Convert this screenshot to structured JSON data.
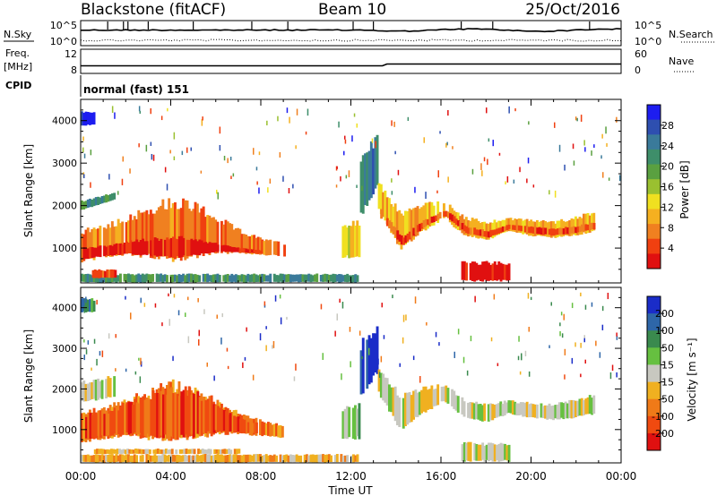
{
  "header": {
    "station": "Blackstone (fitACF)",
    "beam": "Beam 10",
    "date": "25/Oct/2016"
  },
  "summary_panels": {
    "nsky_label": "N.Sky",
    "nsearch_label": "N.Search",
    "count_axis_ticks": [
      "10^5",
      "10^0"
    ],
    "freq_label_line1": "Freq.",
    "freq_label_line2": "[MHz]",
    "freq_ticks": [
      "12",
      "8"
    ],
    "nave_label": "Nave",
    "nave_ticks": [
      "60",
      "0"
    ],
    "cpid_label": "CPID",
    "cpid_text": "normal (fast) 151"
  },
  "chart_data": [
    {
      "type": "heatmap",
      "name": "power-panel",
      "ylabel": "Slant Range [km]",
      "ylim": [
        180,
        4500
      ],
      "yticks": [
        1000,
        2000,
        3000,
        4000
      ],
      "xlim": [
        0,
        24
      ],
      "colorbar": {
        "label": "Power [dB]",
        "ticks": [
          "28",
          "24",
          "20",
          "16",
          "12",
          "8",
          "4"
        ],
        "colors": [
          "#1d1df0",
          "#2e4fb0",
          "#3a7a9a",
          "#3e8e6a",
          "#5aa040",
          "#9ac030",
          "#f0e020",
          "#f5b020",
          "#f08020",
          "#f04010",
          "#e01010"
        ]
      },
      "bands": [
        {
          "t": [
            0,
            1.5
          ],
          "lo": [
            1900,
            2150
          ],
          "hi": [
            2100,
            2300
          ],
          "c": 3
        },
        {
          "t": [
            0,
            9
          ],
          "lo": [
            700,
            800,
            850,
            800,
            750,
            800,
            900,
            900,
            850,
            800
          ],
          "hi": [
            1400,
            1500,
            1700,
            1900,
            2100,
            2000,
            1700,
            1400,
            1200,
            1100
          ],
          "c": 8
        },
        {
          "t": [
            0.1,
            8
          ],
          "lo": [
            750,
            820,
            870,
            820,
            780,
            830,
            920,
            900,
            870
          ],
          "hi": [
            1000,
            1050,
            1150,
            1200,
            1250,
            1200,
            1100,
            1000,
            950
          ],
          "c": 10
        },
        {
          "t": [
            11.6,
            12.4
          ],
          "lo": [
            800,
            800
          ],
          "hi": [
            1500,
            1600
          ],
          "c": 6
        },
        {
          "t": [
            12.4,
            13.2
          ],
          "lo": [
            1800,
            2500
          ],
          "hi": [
            3100,
            3600
          ],
          "c": 2
        },
        {
          "t": [
            13.2,
            22.8
          ],
          "lo": [
            1900,
            1000,
            1400,
            1700,
            1300,
            1200,
            1400,
            1300,
            1250,
            1300,
            1400
          ],
          "hi": [
            2500,
            1800,
            2000,
            2100,
            1700,
            1600,
            1700,
            1650,
            1600,
            1700,
            1850
          ],
          "c": 7
        },
        {
          "t": [
            13.3,
            22.8
          ],
          "lo": [
            1700,
            1050,
            1500,
            1750,
            1350,
            1250,
            1450,
            1350,
            1300,
            1350,
            1450
          ],
          "hi": [
            1900,
            1250,
            1650,
            1900,
            1500,
            1400,
            1550,
            1500,
            1450,
            1500,
            1600
          ],
          "c": 9
        },
        {
          "t": [
            0,
            12.3
          ],
          "lo": [
            200,
            200
          ],
          "hi": [
            380,
            380
          ],
          "c": 3
        },
        {
          "t": [
            16.9,
            19.0
          ],
          "lo": [
            230,
            230
          ],
          "hi": [
            650,
            650
          ],
          "c": 10
        },
        {
          "t": [
            0.5,
            1.5
          ],
          "lo": [
            300,
            300
          ],
          "hi": [
            480,
            480
          ],
          "c": 9
        },
        {
          "t": [
            0,
            0.6
          ],
          "lo": [
            3900,
            3900
          ],
          "hi": [
            4200,
            4200
          ],
          "c": 0
        }
      ]
    },
    {
      "type": "heatmap",
      "name": "velocity-panel",
      "ylabel": "Slant Range [km]",
      "xlabel": "Time UT",
      "ylim": [
        180,
        4500
      ],
      "yticks": [
        1000,
        2000,
        3000,
        4000
      ],
      "xlim": [
        0,
        24
      ],
      "xticks": [
        "00:00",
        "04:00",
        "08:00",
        "12:00",
        "16:00",
        "20:00",
        "00:00"
      ],
      "colorbar": {
        "label": "Velocity [m s⁻¹]",
        "ticks": [
          "200",
          "100",
          "50",
          "15",
          "-15",
          "-50",
          "-100",
          "-200"
        ],
        "colors": [
          "#1a2cc8",
          "#2e66a8",
          "#3a8a4e",
          "#66c040",
          "#c8c8c0",
          "#f0b020",
          "#f07a18",
          "#f04a10",
          "#e01010"
        ]
      },
      "bands": [
        {
          "t": [
            0,
            1.5
          ],
          "lo": [
            1700,
            1800
          ],
          "hi": [
            2150,
            2300
          ],
          "c": 4
        },
        {
          "t": [
            0,
            9
          ],
          "lo": [
            700,
            800,
            850,
            800,
            750,
            800,
            900,
            900,
            850,
            800
          ],
          "hi": [
            1400,
            1500,
            1700,
            1900,
            2100,
            2000,
            1700,
            1400,
            1200,
            1100
          ],
          "c": 6
        },
        {
          "t": [
            0.2,
            7.8
          ],
          "lo": [
            780,
            850,
            900,
            860,
            800,
            860,
            950,
            940,
            900
          ],
          "hi": [
            1350,
            1450,
            1650,
            1850,
            2000,
            1900,
            1600,
            1300,
            1150
          ],
          "c": 7
        },
        {
          "t": [
            11.6,
            12.4
          ],
          "lo": [
            800,
            800
          ],
          "hi": [
            1500,
            1600
          ],
          "c": 3
        },
        {
          "t": [
            12.4,
            13.2
          ],
          "lo": [
            1800,
            2500
          ],
          "hi": [
            3100,
            3600
          ],
          "c": 0
        },
        {
          "t": [
            13.2,
            22.8
          ],
          "lo": [
            1900,
            1000,
            1400,
            1700,
            1300,
            1200,
            1400,
            1300,
            1250,
            1300,
            1400
          ],
          "hi": [
            2500,
            1800,
            2000,
            2100,
            1700,
            1600,
            1700,
            1650,
            1600,
            1700,
            1850
          ],
          "c": 4
        },
        {
          "t": [
            0,
            12.3
          ],
          "lo": [
            200,
            200
          ],
          "hi": [
            380,
            380
          ],
          "c": 5
        },
        {
          "t": [
            0.5,
            7
          ],
          "lo": [
            400,
            400
          ],
          "hi": [
            520,
            520
          ],
          "c": 5
        },
        {
          "t": [
            16.9,
            19.0
          ],
          "lo": [
            230,
            230
          ],
          "hi": [
            650,
            650
          ],
          "c": 4
        },
        {
          "t": [
            0,
            0.6
          ],
          "lo": [
            3900,
            3900
          ],
          "hi": [
            4200,
            4200
          ],
          "c": 2
        }
      ]
    }
  ]
}
